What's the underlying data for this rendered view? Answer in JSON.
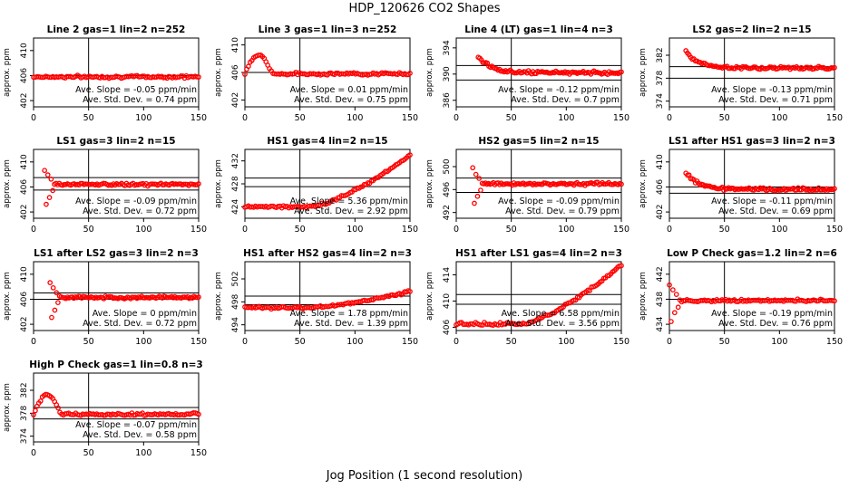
{
  "title": "HDP_120626  CO2 Shapes",
  "xlabel": "Jog Position (1 second resolution)",
  "colors": {
    "points": "#ff0000",
    "axes": "#000000"
  },
  "chart_data": [
    {
      "type": "scatter",
      "title": "Line 2 gas=1 lin=2 n=252",
      "ylabel": "approx. ppm",
      "xlim": [
        0,
        150
      ],
      "ylim": [
        401,
        412
      ],
      "yticks": [
        402,
        406,
        410
      ],
      "xticks": [
        0,
        50,
        100,
        150
      ],
      "hlines": [
        406
      ],
      "vline": 50,
      "x_start": 0,
      "x_end": 150,
      "pattern": "flat",
      "level": 405.8,
      "annotations": [
        "Ave. Slope = -0.05 ppm/min",
        "Ave. Std. Dev. = 0.74 ppm"
      ]
    },
    {
      "type": "scatter",
      "title": "Line 3 gas=1 lin=3 n=252",
      "ylabel": "approx. ppm",
      "xlim": [
        0,
        150
      ],
      "ylim": [
        401,
        411
      ],
      "yticks": [
        402,
        406,
        410
      ],
      "xticks": [
        0,
        50,
        100,
        150
      ],
      "hlines": [
        406
      ],
      "vline": 50,
      "x_start": 0,
      "x_end": 150,
      "pattern": "bump",
      "level": 405.8,
      "annotations": [
        "Ave. Slope = 0.01 ppm/min",
        "Ave. Std. Dev. = 0.75 ppm"
      ]
    },
    {
      "type": "scatter",
      "title": "Line 4 (LT) gas=1 lin=4 n=3",
      "ylabel": "approx. ppm",
      "xlim": [
        0,
        150
      ],
      "ylim": [
        385,
        395.5
      ],
      "yticks": [
        386,
        390,
        394
      ],
      "xticks": [
        0,
        50,
        100,
        150
      ],
      "hlines": [
        391.3,
        389.1
      ],
      "vline": 50,
      "x_start": 20,
      "x_end": 150,
      "pattern": "decay",
      "level": 390.2,
      "annotations": [
        "Ave. Slope = -0.12 ppm/min",
        "Ave. Std. Dev. = 0.7 ppm"
      ]
    },
    {
      "type": "scatter",
      "title": "LS2 gas=2 lin=2 n=15",
      "ylabel": "approx. ppm",
      "xlim": [
        0,
        150
      ],
      "ylim": [
        373,
        385
      ],
      "yticks": [
        374,
        378,
        382
      ],
      "xticks": [
        0,
        50,
        100,
        150
      ],
      "hlines": [
        380,
        378
      ],
      "vline": 50,
      "x_start": 15,
      "x_end": 150,
      "pattern": "decay",
      "level": 379.8,
      "annotations": [
        "Ave. Slope = -0.13 ppm/min",
        "Ave. Std. Dev. = 0.71 ppm"
      ]
    },
    {
      "type": "scatter",
      "title": "LS1 gas=3 lin=2 n=15",
      "ylabel": "approx. ppm",
      "xlim": [
        0,
        150
      ],
      "ylim": [
        401,
        412
      ],
      "yticks": [
        402,
        406,
        410
      ],
      "xticks": [
        0,
        50,
        100,
        150
      ],
      "hlines": [
        407.5,
        405.5
      ],
      "vline": 50,
      "x_start": 10,
      "x_end": 150,
      "pattern": "dip",
      "level": 406.4,
      "annotations": [
        "Ave. Slope = -0.09 ppm/min",
        "Ave. Std. Dev. = 0.72 ppm"
      ]
    },
    {
      "type": "scatter",
      "title": "HS1 gas=4 lin=2 n=15",
      "ylabel": "approx. ppm",
      "xlim": [
        0,
        150
      ],
      "ylim": [
        422,
        434
      ],
      "yticks": [
        424,
        428,
        432
      ],
      "xticks": [
        0,
        50,
        100,
        150
      ],
      "hlines": [
        429,
        427.5
      ],
      "vline": 50,
      "x_start": 0,
      "x_end": 150,
      "pattern": "rise",
      "level": 424,
      "level2": 433,
      "annotations": [
        "Ave. Slope = 5.36 ppm/min",
        "Ave. Std. Dev. = 2.92 ppm"
      ]
    },
    {
      "type": "scatter",
      "title": "HS2 gas=5 lin=2 n=15",
      "ylabel": "approx. ppm",
      "xlim": [
        0,
        150
      ],
      "ylim": [
        491,
        503
      ],
      "yticks": [
        492,
        496,
        500
      ],
      "xticks": [
        0,
        50,
        100,
        150
      ],
      "hlines": [
        498,
        495.5
      ],
      "vline": 50,
      "x_start": 15,
      "x_end": 150,
      "pattern": "dip",
      "level": 497,
      "annotations": [
        "Ave. Slope = -0.09 ppm/min",
        "Ave. Std. Dev. = 0.79 ppm"
      ]
    },
    {
      "type": "scatter",
      "title": "LS1 after HS1 gas=3 lin=2 n=3",
      "ylabel": "approx. ppm",
      "xlim": [
        0,
        150
      ],
      "ylim": [
        401,
        412
      ],
      "yticks": [
        402,
        406,
        410
      ],
      "xticks": [
        0,
        50,
        100,
        150
      ],
      "hlines": [
        406,
        405
      ],
      "vline": 50,
      "x_start": 15,
      "x_end": 150,
      "pattern": "decay",
      "level": 405.6,
      "annotations": [
        "Ave. Slope = -0.11 ppm/min",
        "Ave. Std. Dev. = 0.69 ppm"
      ]
    },
    {
      "type": "scatter",
      "title": "LS1 after LS2 gas=3 lin=2 n=3",
      "ylabel": "approx. ppm",
      "xlim": [
        0,
        150
      ],
      "ylim": [
        401,
        412
      ],
      "yticks": [
        402,
        406,
        410
      ],
      "xticks": [
        0,
        50,
        100,
        150
      ],
      "hlines": [
        407,
        406
      ],
      "vline": 50,
      "x_start": 15,
      "x_end": 150,
      "pattern": "dip",
      "level": 406.3,
      "annotations": [
        "Ave. Slope = 0 ppm/min",
        "Ave. Std. Dev. = 0.72 ppm"
      ]
    },
    {
      "type": "scatter",
      "title": "HS1 after HS2 gas=4 lin=2 n=3",
      "ylabel": "approx. ppm",
      "xlim": [
        0,
        150
      ],
      "ylim": [
        493,
        505
      ],
      "yticks": [
        494,
        498,
        502
      ],
      "xticks": [
        0,
        50,
        100,
        150
      ],
      "hlines": [
        499,
        497.5
      ],
      "vline": 50,
      "x_start": 0,
      "x_end": 150,
      "pattern": "rise",
      "level": 497,
      "level2": 499.8,
      "annotations": [
        "Ave. Slope = 1.78 ppm/min",
        "Ave. Std. Dev. = 1.39 ppm"
      ]
    },
    {
      "type": "scatter",
      "title": "HS1 after LS1 gas=4 lin=2 n=3",
      "ylabel": "approx. ppm",
      "xlim": [
        0,
        150
      ],
      "ylim": [
        405.5,
        416
      ],
      "yticks": [
        406,
        410,
        414
      ],
      "xticks": [
        0,
        50,
        100,
        150
      ],
      "hlines": [
        411,
        409.5
      ],
      "vline": 50,
      "x_start": 0,
      "x_end": 150,
      "pattern": "rise",
      "level": 406.5,
      "level2": 415.5,
      "annotations": [
        "Ave. Slope = 6.58 ppm/min",
        "Ave. Std. Dev. = 3.56 ppm"
      ]
    },
    {
      "type": "scatter",
      "title": "Low P Check gas=1.2 lin=2 n=6",
      "ylabel": "approx. ppm",
      "xlim": [
        0,
        150
      ],
      "ylim": [
        433,
        444
      ],
      "yticks": [
        434,
        438,
        442
      ],
      "xticks": [
        0,
        50,
        100,
        150
      ],
      "hlines": [
        438
      ],
      "vline": 50,
      "x_start": 0,
      "x_end": 150,
      "pattern": "dip",
      "level": 437.8,
      "annotations": [
        "Ave. Slope = -0.19 ppm/min",
        "Ave. Std. Dev. = 0.76 ppm"
      ]
    },
    {
      "type": "scatter",
      "title": "High P Check gas=1 lin=0.8 n=3",
      "ylabel": "approx. ppm",
      "xlim": [
        0,
        150
      ],
      "ylim": [
        373,
        385
      ],
      "yticks": [
        374,
        378,
        382
      ],
      "xticks": [
        0,
        50,
        100,
        150
      ],
      "hlines": [
        379,
        377
      ],
      "vline": 50,
      "x_start": 0,
      "x_end": 150,
      "pattern": "bump",
      "level": 377.8,
      "annotations": [
        "Ave. Slope = -0.07 ppm/min",
        "Ave. Std. Dev. = 0.58 ppm"
      ]
    }
  ]
}
